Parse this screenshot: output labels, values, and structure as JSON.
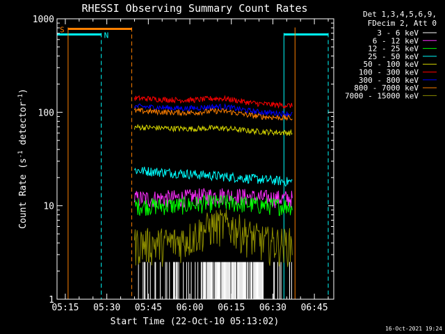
{
  "chart_data": {
    "type": "line",
    "title": "RHESSI Observing Summary Count Rates",
    "xlabel": "Start Time (22-Oct-10 05:13:02)",
    "ylabel_main": "Count Rate (s",
    "ylabel_sup1": "-1",
    "ylabel_mid": " detector",
    "ylabel_sup2": "-1",
    "ylabel_end": ")",
    "yscale": "log",
    "xlim": [
      "05:12",
      "06:52"
    ],
    "ylim": [
      1,
      1000
    ],
    "y_ticks": [
      "1",
      "10",
      "100",
      "1000"
    ],
    "x_ticks": [
      {
        "label": "05:15",
        "t": "05:15"
      },
      {
        "label": "05:30",
        "t": "05:30"
      },
      {
        "label": "05:45",
        "t": "05:45"
      },
      {
        "label": "06:00",
        "t": "06:00"
      },
      {
        "label": "06:15",
        "t": "06:15"
      },
      {
        "label": "06:30",
        "t": "06:30"
      },
      {
        "label": "06:45",
        "t": "06:45"
      }
    ],
    "legend_header": [
      "Det 1,3,4,5,6,9,",
      "FDecim 2, Att 0"
    ],
    "legend_position": "top-right",
    "series": [
      {
        "name": "3 - 6 keV",
        "color": "#ffffff",
        "level": 2.5,
        "sparse": true
      },
      {
        "name": "6 - 12 keV",
        "color": "#ff30ff",
        "level": 12
      },
      {
        "name": "12 - 25 keV",
        "color": "#00ff00",
        "level": 10
      },
      {
        "name": "25 - 50 keV",
        "color": "#00ffff",
        "level": 20
      },
      {
        "name": "50 - 100 keV",
        "color": "#d8d800",
        "level": 62
      },
      {
        "name": "100 - 300 keV",
        "color": "#ff0000",
        "level": 120
      },
      {
        "name": "300 - 800 keV",
        "color": "#0000ff",
        "level": 98
      },
      {
        "name": "800 - 7000 keV",
        "color": "#ff8000",
        "level": 88
      },
      {
        "name": "7000 - 15000 keV",
        "color": "#8c8c00",
        "level": 4
      }
    ],
    "data_start": "05:40",
    "data_end": "06:37",
    "saa_label": "S",
    "night_label": "N",
    "saa_color": "#ff8000",
    "night_color": "#00ffff",
    "saa_bar": {
      "start": "05:16",
      "end": "05:39",
      "level": 780
    },
    "night_bar_1": {
      "start": "05:12",
      "end": "05:28",
      "level": 680
    },
    "night_bar_2": {
      "start": "06:34",
      "end": "06:50",
      "level": 680
    },
    "saa_lines": [
      {
        "t": "05:16",
        "style": "solid"
      },
      {
        "t": "05:39",
        "style": "dashed"
      },
      {
        "t": "06:38",
        "style": "solid"
      }
    ],
    "night_lines": [
      {
        "t": "05:12",
        "style": "solid"
      },
      {
        "t": "05:28",
        "style": "dashed"
      },
      {
        "t": "06:34",
        "style": "solid"
      },
      {
        "t": "06:50",
        "style": "dashed"
      }
    ],
    "timestamp": "16-Oct-2021 19:24"
  }
}
